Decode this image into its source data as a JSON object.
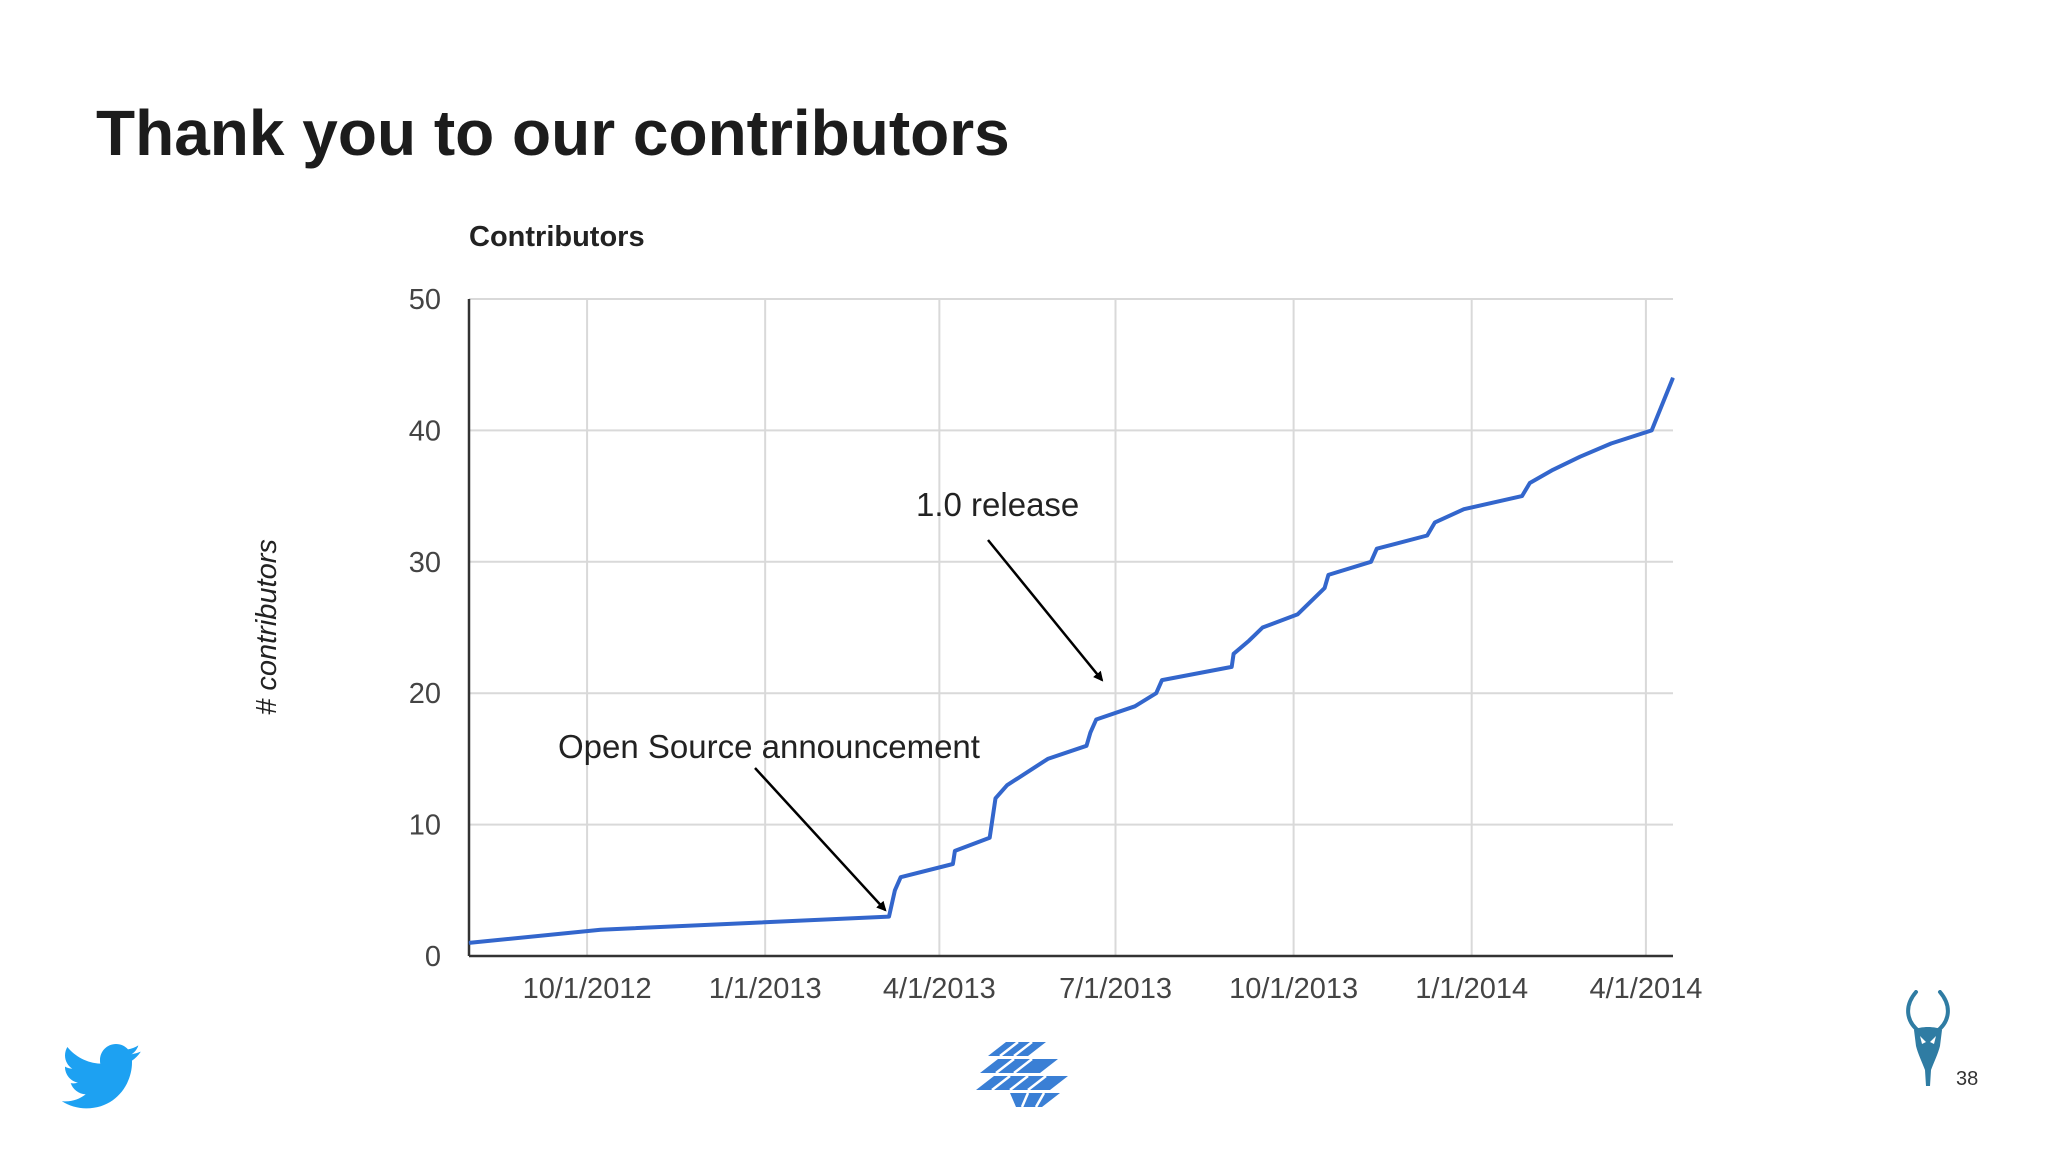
{
  "slide": {
    "title": "Thank you to our contributors",
    "page_number": "38"
  },
  "icons": [
    "twitter-bird-icon",
    "brand-logo-icon",
    "gazelle-logo-icon"
  ],
  "colors": {
    "line": "#3366cc",
    "grid": "#d9d9d9",
    "twitter": "#1da1f2",
    "gazelle": "#2f7ca3"
  },
  "chart_data": {
    "type": "line",
    "title": "Contributors",
    "ylabel": "# contributors",
    "xlabel": "",
    "ylim": [
      0,
      50
    ],
    "yticks": [
      0,
      10,
      20,
      30,
      40,
      50
    ],
    "ytick_labels": [
      "0",
      "10",
      "20",
      "30",
      "40",
      "50"
    ],
    "xlim": [
      "2012-08-01",
      "2014-04-15"
    ],
    "xticks": [
      "2012-10-01",
      "2013-01-01",
      "2013-04-01",
      "2013-07-01",
      "2013-10-01",
      "2014-01-01",
      "2014-04-01"
    ],
    "xtick_labels": [
      "10/1/2012",
      "1/1/2013",
      "4/1/2013",
      "7/1/2013",
      "10/1/2013",
      "1/1/2014",
      "4/1/2014"
    ],
    "grid": true,
    "legend": "none",
    "series": [
      {
        "x": [
          "2012-08-01",
          "2012-10-08",
          "2013-03-06",
          "2013-03-09",
          "2013-03-12",
          "2013-04-08",
          "2013-04-09",
          "2013-04-27",
          "2013-04-30",
          "2013-05-06",
          "2013-05-27",
          "2013-06-16",
          "2013-06-18",
          "2013-06-21",
          "2013-07-11",
          "2013-07-22",
          "2013-07-25",
          "2013-08-30",
          "2013-08-31",
          "2013-09-08",
          "2013-09-15",
          "2013-10-03",
          "2013-10-17",
          "2013-10-19",
          "2013-11-10",
          "2013-11-13",
          "2013-12-09",
          "2013-12-13",
          "2013-12-28",
          "2014-01-27",
          "2014-01-31",
          "2014-02-12",
          "2014-02-26",
          "2014-03-14",
          "2014-04-04",
          "2014-04-15"
        ],
        "y": [
          1,
          2,
          3,
          5,
          6,
          7,
          8,
          9,
          12,
          13,
          15,
          16,
          17,
          18,
          19,
          20,
          21,
          22,
          23,
          24,
          25,
          26,
          28,
          29,
          30,
          31,
          32,
          33,
          34,
          35,
          36,
          37,
          38,
          39,
          40,
          44
        ]
      }
    ],
    "annotations": [
      {
        "text": "Open Source announcement",
        "points_to": {
          "x": "2013-03-04",
          "y": 3.5
        }
      },
      {
        "text": "1.0 release",
        "points_to": {
          "x": "2013-06-24",
          "y": 21
        }
      }
    ]
  }
}
